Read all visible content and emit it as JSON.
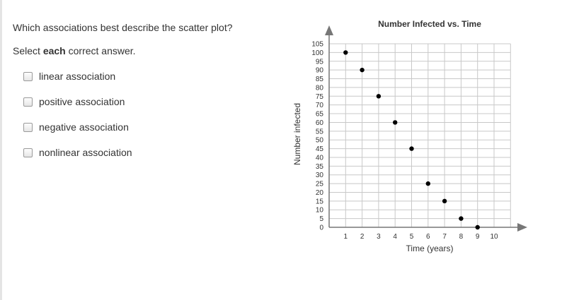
{
  "question": {
    "prompt": "Which associations best describe the scatter plot?",
    "instruction_prefix": "Select ",
    "instruction_bold": "each",
    "instruction_suffix": " correct answer."
  },
  "options": [
    {
      "label": "linear association",
      "checked": false
    },
    {
      "label": "positive association",
      "checked": false
    },
    {
      "label": "negative association",
      "checked": false
    },
    {
      "label": "nonlinear association",
      "checked": false
    }
  ],
  "chart_data": {
    "type": "scatter",
    "title": "Number Infected vs. Time",
    "xlabel": "Time (years)",
    "ylabel": "Number infected",
    "x_ticks": [
      1,
      2,
      3,
      4,
      5,
      6,
      7,
      8,
      9,
      10
    ],
    "y_ticks": [
      0,
      5,
      10,
      15,
      20,
      25,
      30,
      35,
      40,
      45,
      50,
      55,
      60,
      65,
      70,
      75,
      80,
      85,
      90,
      95,
      100,
      105
    ],
    "xlim": [
      0,
      11
    ],
    "ylim": [
      0,
      105
    ],
    "grid": true,
    "points": [
      {
        "x": 1,
        "y": 100
      },
      {
        "x": 2,
        "y": 90
      },
      {
        "x": 3,
        "y": 75
      },
      {
        "x": 4,
        "y": 60
      },
      {
        "x": 5,
        "y": 45
      },
      {
        "x": 6,
        "y": 25
      },
      {
        "x": 7,
        "y": 15
      },
      {
        "x": 8,
        "y": 5
      },
      {
        "x": 9,
        "y": 0
      }
    ]
  }
}
